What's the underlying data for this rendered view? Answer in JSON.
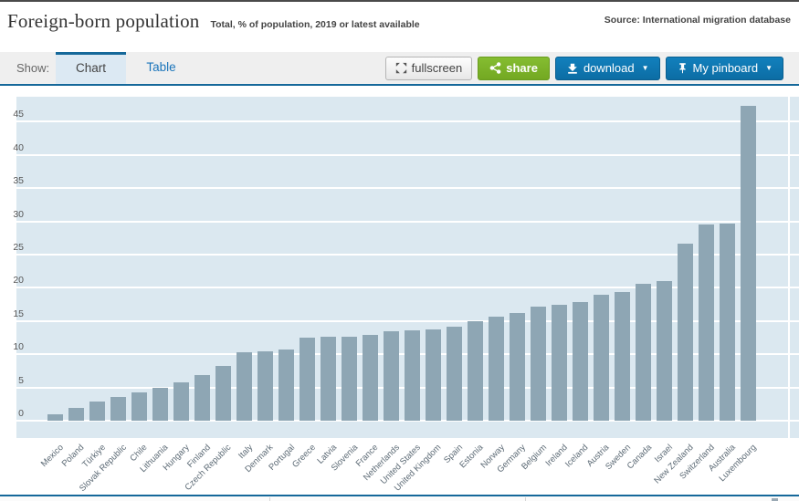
{
  "header": {
    "title": "Foreign-born population",
    "subtitle": "Total, % of population, 2019 or latest available",
    "source": "Source: International migration database"
  },
  "toolbar": {
    "show_label": "Show:",
    "tabs": [
      {
        "label": "Chart",
        "active": true
      },
      {
        "label": "Table",
        "active": false
      }
    ],
    "buttons": {
      "fullscreen": "fullscreen",
      "share": "share",
      "download": "download",
      "pinboard": "My pinboard",
      "caret": "▼"
    }
  },
  "colors": {
    "accent_blue": "#15689a",
    "button_blue": "#0d76ad",
    "button_green": "#7cb228",
    "bar": "#8ea6b4",
    "plot_background": "#dbe8f0",
    "gridline": "#ffffff"
  },
  "chart_data": {
    "type": "bar",
    "title": "Foreign-born population",
    "subtitle": "Total, % of population, 2019 or latest available",
    "ylabel": "% of population",
    "xlabel": "",
    "ylim": [
      0,
      48.8
    ],
    "yticks": [
      0,
      5,
      10,
      15,
      20,
      25,
      30,
      35,
      40,
      45
    ],
    "grid": true,
    "legend": "none",
    "categories": [
      "Mexico",
      "Poland",
      "Türkiye",
      "Slovak Republic",
      "Chile",
      "Lithuania",
      "Hungary",
      "Finland",
      "Czech Republic",
      "Italy",
      "Denmark",
      "Portugal",
      "Greece",
      "Latvia",
      "Slovenia",
      "France",
      "Netherlands",
      "United States",
      "United Kingdom",
      "Spain",
      "Estonia",
      "Norway",
      "Germany",
      "Belgium",
      "Ireland",
      "Iceland",
      "Austria",
      "Sweden",
      "Canada",
      "Israel",
      "New Zealand",
      "Switzerland",
      "Australia",
      "Luxembourg"
    ],
    "values": [
      0.9,
      1.9,
      2.9,
      3.6,
      4.2,
      5.0,
      5.8,
      6.9,
      8.3,
      10.3,
      10.4,
      10.7,
      12.5,
      12.6,
      12.6,
      12.9,
      13.4,
      13.6,
      13.7,
      14.2,
      15.0,
      15.6,
      16.2,
      17.2,
      17.5,
      17.8,
      19.0,
      19.3,
      20.6,
      21.0,
      26.6,
      29.5,
      29.7,
      47.4
    ]
  }
}
